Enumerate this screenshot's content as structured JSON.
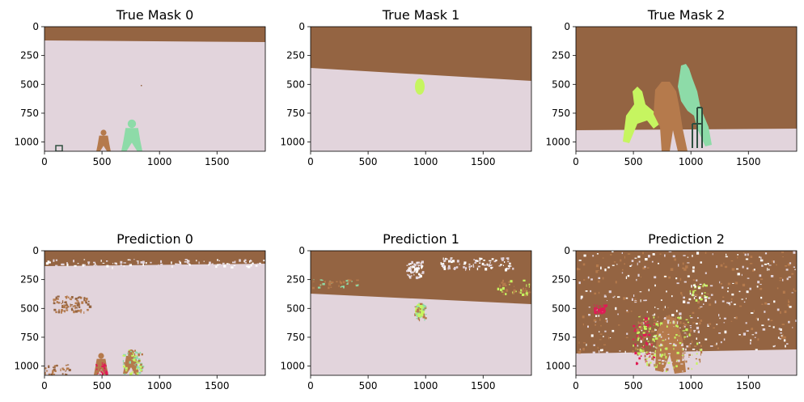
{
  "colors": {
    "ground": "#e2d4dc",
    "background": "#946442",
    "player_brown": "#b57a4c",
    "player_green": "#8ddba8",
    "player_lime": "#c6f560",
    "stumps": "#2e4f3f",
    "magenta": "#e01a56",
    "white": "#ffffff"
  },
  "chart_data": [
    {
      "type": "image",
      "title": "True Mask 0",
      "xticks": [
        0,
        500,
        1000,
        1500
      ],
      "yticks": [
        0,
        250,
        500,
        750,
        1000
      ],
      "xlim": [
        0,
        1920
      ],
      "ylim": [
        1080,
        0
      ]
    },
    {
      "type": "image",
      "title": "True Mask 1",
      "xticks": [
        0,
        500,
        1000,
        1500
      ],
      "yticks": [
        0,
        250,
        500,
        750,
        1000
      ],
      "xlim": [
        0,
        1920
      ],
      "ylim": [
        1080,
        0
      ]
    },
    {
      "type": "image",
      "title": "True Mask 2",
      "xticks": [
        0,
        500,
        1000,
        1500
      ],
      "yticks": [
        0,
        250,
        500,
        750,
        1000
      ],
      "xlim": [
        0,
        1920
      ],
      "ylim": [
        1080,
        0
      ]
    },
    {
      "type": "image",
      "title": "Prediction 0",
      "xticks": [
        0,
        500,
        1000,
        1500
      ],
      "yticks": [
        0,
        250,
        500,
        750,
        1000
      ],
      "xlim": [
        0,
        1920
      ],
      "ylim": [
        1080,
        0
      ]
    },
    {
      "type": "image",
      "title": "Prediction 1",
      "xticks": [
        0,
        500,
        1000,
        1500
      ],
      "yticks": [
        0,
        250,
        500,
        750,
        1000
      ],
      "xlim": [
        0,
        1920
      ],
      "ylim": [
        1080,
        0
      ]
    },
    {
      "type": "image",
      "title": "Prediction 2",
      "xticks": [
        0,
        500,
        1000,
        1500
      ],
      "yticks": [
        0,
        250,
        500,
        750,
        1000
      ],
      "xlim": [
        0,
        1920
      ],
      "ylim": [
        1080,
        0
      ]
    }
  ]
}
